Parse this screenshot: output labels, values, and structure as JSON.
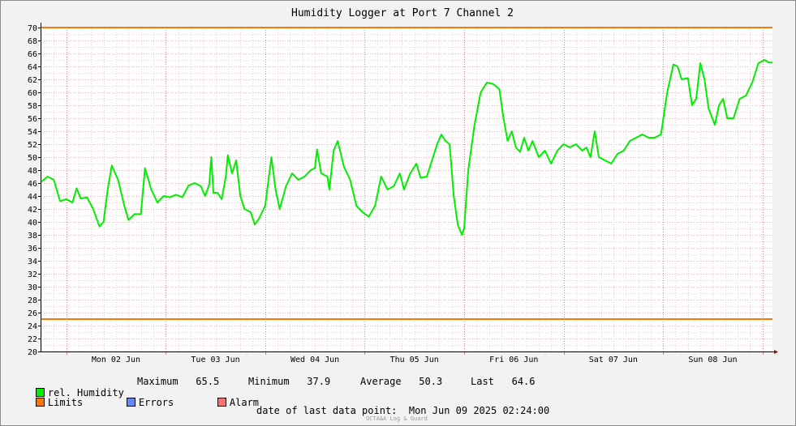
{
  "chart_data": {
    "type": "line",
    "title": "Humidity Logger at Port 7 Channel 2",
    "x_range": [
      "2025-06-01T18:00",
      "2025-06-09T02:24"
    ],
    "ylim": [
      20,
      70
    ],
    "y_ticks": [
      20,
      22,
      24,
      26,
      28,
      30,
      32,
      34,
      36,
      38,
      40,
      42,
      44,
      46,
      48,
      50,
      52,
      54,
      56,
      58,
      60,
      62,
      64,
      66,
      68,
      70
    ],
    "day_labels": [
      {
        "label": "Mon 02 Jun",
        "t": "2025-06-02T12:00"
      },
      {
        "label": "Tue 03 Jun",
        "t": "2025-06-03T12:00"
      },
      {
        "label": "Wed 04 Jun",
        "t": "2025-06-04T12:00"
      },
      {
        "label": "Thu 05 Jun",
        "t": "2025-06-05T12:00"
      },
      {
        "label": "Fri 06 Jun",
        "t": "2025-06-06T12:00"
      },
      {
        "label": "Sat 07 Jun",
        "t": "2025-06-07T12:00"
      },
      {
        "label": "Sun 08 Jun",
        "t": "2025-06-08T12:00"
      }
    ],
    "grid": true,
    "limits": {
      "upper": 70,
      "lower": 25
    },
    "series": [
      {
        "name": "rel. Humidity",
        "color": "#00ee00",
        "points": [
          [
            "2025-06-01T18:00",
            46.2
          ],
          [
            "2025-06-01T19:30",
            47.0
          ],
          [
            "2025-06-01T21:00",
            46.5
          ],
          [
            "2025-06-01T22:30",
            43.2
          ],
          [
            "2025-06-02T00:00",
            43.5
          ],
          [
            "2025-06-02T01:30",
            43.0
          ],
          [
            "2025-06-02T02:30",
            45.2
          ],
          [
            "2025-06-02T03:30",
            43.6
          ],
          [
            "2025-06-02T05:00",
            43.8
          ],
          [
            "2025-06-02T06:30",
            42.0
          ],
          [
            "2025-06-02T08:00",
            39.3
          ],
          [
            "2025-06-02T09:00",
            40.0
          ],
          [
            "2025-06-02T10:00",
            45.0
          ],
          [
            "2025-06-02T11:00",
            48.7
          ],
          [
            "2025-06-02T12:30",
            46.5
          ],
          [
            "2025-06-02T14:00",
            42.5
          ],
          [
            "2025-06-02T15:00",
            40.3
          ],
          [
            "2025-06-02T16:30",
            41.2
          ],
          [
            "2025-06-02T18:00",
            41.2
          ],
          [
            "2025-06-02T19:00",
            48.3
          ],
          [
            "2025-06-02T20:30",
            45.0
          ],
          [
            "2025-06-02T22:00",
            43.0
          ],
          [
            "2025-06-02T23:30",
            44.0
          ],
          [
            "2025-06-03T01:00",
            43.8
          ],
          [
            "2025-06-03T02:30",
            44.2
          ],
          [
            "2025-06-03T04:00",
            43.8
          ],
          [
            "2025-06-03T05:30",
            45.6
          ],
          [
            "2025-06-03T07:00",
            46.0
          ],
          [
            "2025-06-03T08:30",
            45.5
          ],
          [
            "2025-06-03T09:30",
            44.0
          ],
          [
            "2025-06-03T10:30",
            45.8
          ],
          [
            "2025-06-03T11:00",
            50.0
          ],
          [
            "2025-06-03T11:30",
            44.5
          ],
          [
            "2025-06-03T12:30",
            44.5
          ],
          [
            "2025-06-03T13:30",
            43.5
          ],
          [
            "2025-06-03T14:30",
            47.0
          ],
          [
            "2025-06-03T15:00",
            50.3
          ],
          [
            "2025-06-03T16:00",
            47.5
          ],
          [
            "2025-06-03T17:00",
            49.5
          ],
          [
            "2025-06-03T18:00",
            44.0
          ],
          [
            "2025-06-03T19:00",
            42.0
          ],
          [
            "2025-06-03T20:30",
            41.5
          ],
          [
            "2025-06-03T21:30",
            39.6
          ],
          [
            "2025-06-03T22:30",
            40.5
          ],
          [
            "2025-06-04T00:00",
            42.5
          ],
          [
            "2025-06-04T01:30",
            50.0
          ],
          [
            "2025-06-04T02:30",
            45.0
          ],
          [
            "2025-06-04T03:30",
            42.0
          ],
          [
            "2025-06-04T05:00",
            45.5
          ],
          [
            "2025-06-04T06:30",
            47.5
          ],
          [
            "2025-06-04T08:00",
            46.5
          ],
          [
            "2025-06-04T09:30",
            47.0
          ],
          [
            "2025-06-04T11:00",
            48.0
          ],
          [
            "2025-06-04T12:00",
            48.3
          ],
          [
            "2025-06-04T12:30",
            51.2
          ],
          [
            "2025-06-04T13:30",
            47.5
          ],
          [
            "2025-06-04T15:00",
            47.0
          ],
          [
            "2025-06-04T15:30",
            45.0
          ],
          [
            "2025-06-04T16:30",
            51.0
          ],
          [
            "2025-06-04T17:30",
            52.5
          ],
          [
            "2025-06-04T19:00",
            48.5
          ],
          [
            "2025-06-04T20:30",
            46.5
          ],
          [
            "2025-06-04T22:00",
            42.5
          ],
          [
            "2025-06-04T23:30",
            41.5
          ],
          [
            "2025-06-05T01:00",
            40.8
          ],
          [
            "2025-06-05T02:30",
            42.5
          ],
          [
            "2025-06-05T04:00",
            47.0
          ],
          [
            "2025-06-05T05:30",
            45.0
          ],
          [
            "2025-06-05T07:00",
            45.5
          ],
          [
            "2025-06-05T08:30",
            47.5
          ],
          [
            "2025-06-05T09:30",
            45.0
          ],
          [
            "2025-06-05T11:00",
            47.5
          ],
          [
            "2025-06-05T12:30",
            49.0
          ],
          [
            "2025-06-05T13:30",
            46.8
          ],
          [
            "2025-06-05T15:00",
            47.0
          ],
          [
            "2025-06-05T16:30",
            50.0
          ],
          [
            "2025-06-05T17:30",
            52.0
          ],
          [
            "2025-06-05T18:30",
            53.5
          ],
          [
            "2025-06-05T19:30",
            52.5
          ],
          [
            "2025-06-05T20:30",
            52.0
          ],
          [
            "2025-06-05T21:30",
            44.0
          ],
          [
            "2025-06-05T22:30",
            39.5
          ],
          [
            "2025-06-05T23:30",
            38.0
          ],
          [
            "2025-06-06T00:00",
            39.0
          ],
          [
            "2025-06-06T01:00",
            48.0
          ],
          [
            "2025-06-06T02:30",
            55.0
          ],
          [
            "2025-06-06T04:00",
            60.0
          ],
          [
            "2025-06-06T05:30",
            61.5
          ],
          [
            "2025-06-06T07:00",
            61.3
          ],
          [
            "2025-06-06T08:30",
            60.5
          ],
          [
            "2025-06-06T09:30",
            56.0
          ],
          [
            "2025-06-06T10:30",
            52.5
          ],
          [
            "2025-06-06T11:30",
            54.0
          ],
          [
            "2025-06-06T12:30",
            51.5
          ],
          [
            "2025-06-06T13:30",
            50.8
          ],
          [
            "2025-06-06T14:30",
            53.0
          ],
          [
            "2025-06-06T15:30",
            51.0
          ],
          [
            "2025-06-06T16:30",
            52.5
          ],
          [
            "2025-06-06T18:00",
            50.0
          ],
          [
            "2025-06-06T19:30",
            51.0
          ],
          [
            "2025-06-06T21:00",
            49.0
          ],
          [
            "2025-06-06T22:30",
            51.0
          ],
          [
            "2025-06-07T00:00",
            52.0
          ],
          [
            "2025-06-07T01:30",
            51.5
          ],
          [
            "2025-06-07T03:00",
            52.0
          ],
          [
            "2025-06-07T04:30",
            51.0
          ],
          [
            "2025-06-07T05:30",
            51.5
          ],
          [
            "2025-06-07T06:30",
            50.0
          ],
          [
            "2025-06-07T07:30",
            54.0
          ],
          [
            "2025-06-07T08:30",
            50.0
          ],
          [
            "2025-06-07T10:00",
            49.5
          ],
          [
            "2025-06-07T11:30",
            49.0
          ],
          [
            "2025-06-07T13:00",
            50.5
          ],
          [
            "2025-06-07T14:30",
            51.0
          ],
          [
            "2025-06-07T16:00",
            52.5
          ],
          [
            "2025-06-07T17:30",
            53.0
          ],
          [
            "2025-06-07T19:00",
            53.5
          ],
          [
            "2025-06-07T20:30",
            53.0
          ],
          [
            "2025-06-07T22:00",
            53.0
          ],
          [
            "2025-06-07T23:30",
            53.5
          ],
          [
            "2025-06-08T01:00",
            60.0
          ],
          [
            "2025-06-08T02:30",
            64.3
          ],
          [
            "2025-06-08T03:30",
            64.0
          ],
          [
            "2025-06-08T04:30",
            62.0
          ],
          [
            "2025-06-08T06:00",
            62.2
          ],
          [
            "2025-06-08T07:00",
            58.0
          ],
          [
            "2025-06-08T08:00",
            59.0
          ],
          [
            "2025-06-08T09:00",
            64.5
          ],
          [
            "2025-06-08T10:00",
            62.0
          ],
          [
            "2025-06-08T11:00",
            57.5
          ],
          [
            "2025-06-08T12:30",
            55.0
          ],
          [
            "2025-06-08T13:30",
            58.0
          ],
          [
            "2025-06-08T14:30",
            59.0
          ],
          [
            "2025-06-08T15:30",
            56.0
          ],
          [
            "2025-06-08T17:00",
            56.0
          ],
          [
            "2025-06-08T18:30",
            59.0
          ],
          [
            "2025-06-08T20:00",
            59.5
          ],
          [
            "2025-06-08T21:30",
            61.5
          ],
          [
            "2025-06-08T23:00",
            64.5
          ],
          [
            "2025-06-09T00:30",
            65.0
          ],
          [
            "2025-06-09T01:30",
            64.6
          ],
          [
            "2025-06-09T02:24",
            64.6
          ]
        ]
      }
    ],
    "stats": {
      "maximum": "65.5",
      "minimum": "37.9",
      "average": "50.3",
      "last": "64.6"
    }
  },
  "colors": {
    "series": "#00ee00",
    "limits": "#ff7700",
    "errors": "#6688ff",
    "alarm": "#ff7070"
  },
  "legend": {
    "series_label": "rel. Humidity",
    "max_label": "Maximum",
    "max_value": "65.5",
    "min_label": "Minimum",
    "min_value": "37.9",
    "avg_label": "Average",
    "avg_value": "50.3",
    "last_label": "Last",
    "last_value": "64.6",
    "limits_label": "Limits",
    "errors_label": "Errors",
    "alarm_label": "Alarm"
  },
  "footer": {
    "last_point_label": "date of last data point:",
    "last_point_value": "Mon Jun 09 2025 02:24:00",
    "credit": "OCTA&A Log & Guard"
  }
}
